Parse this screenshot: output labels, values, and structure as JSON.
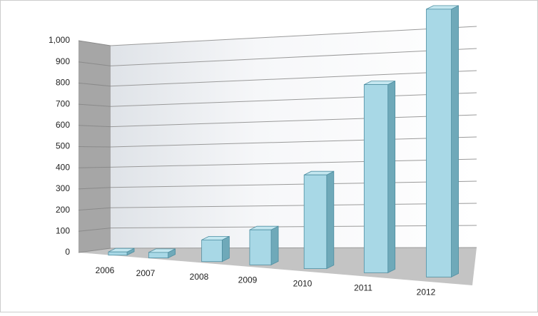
{
  "chart_data": {
    "type": "bar3d",
    "categories": [
      "2006",
      "2007",
      "2008",
      "2009",
      "2010",
      "2011",
      "2012"
    ],
    "values": [
      15,
      25,
      95,
      150,
      390,
      760,
      1050
    ],
    "color": "#a8d8e6",
    "ylim": [
      0,
      1000
    ],
    "yticks": [
      0,
      100,
      200,
      300,
      400,
      500,
      600,
      700,
      800,
      900,
      {
        "value": 1000,
        "label": "1,000"
      }
    ],
    "grid": true
  }
}
